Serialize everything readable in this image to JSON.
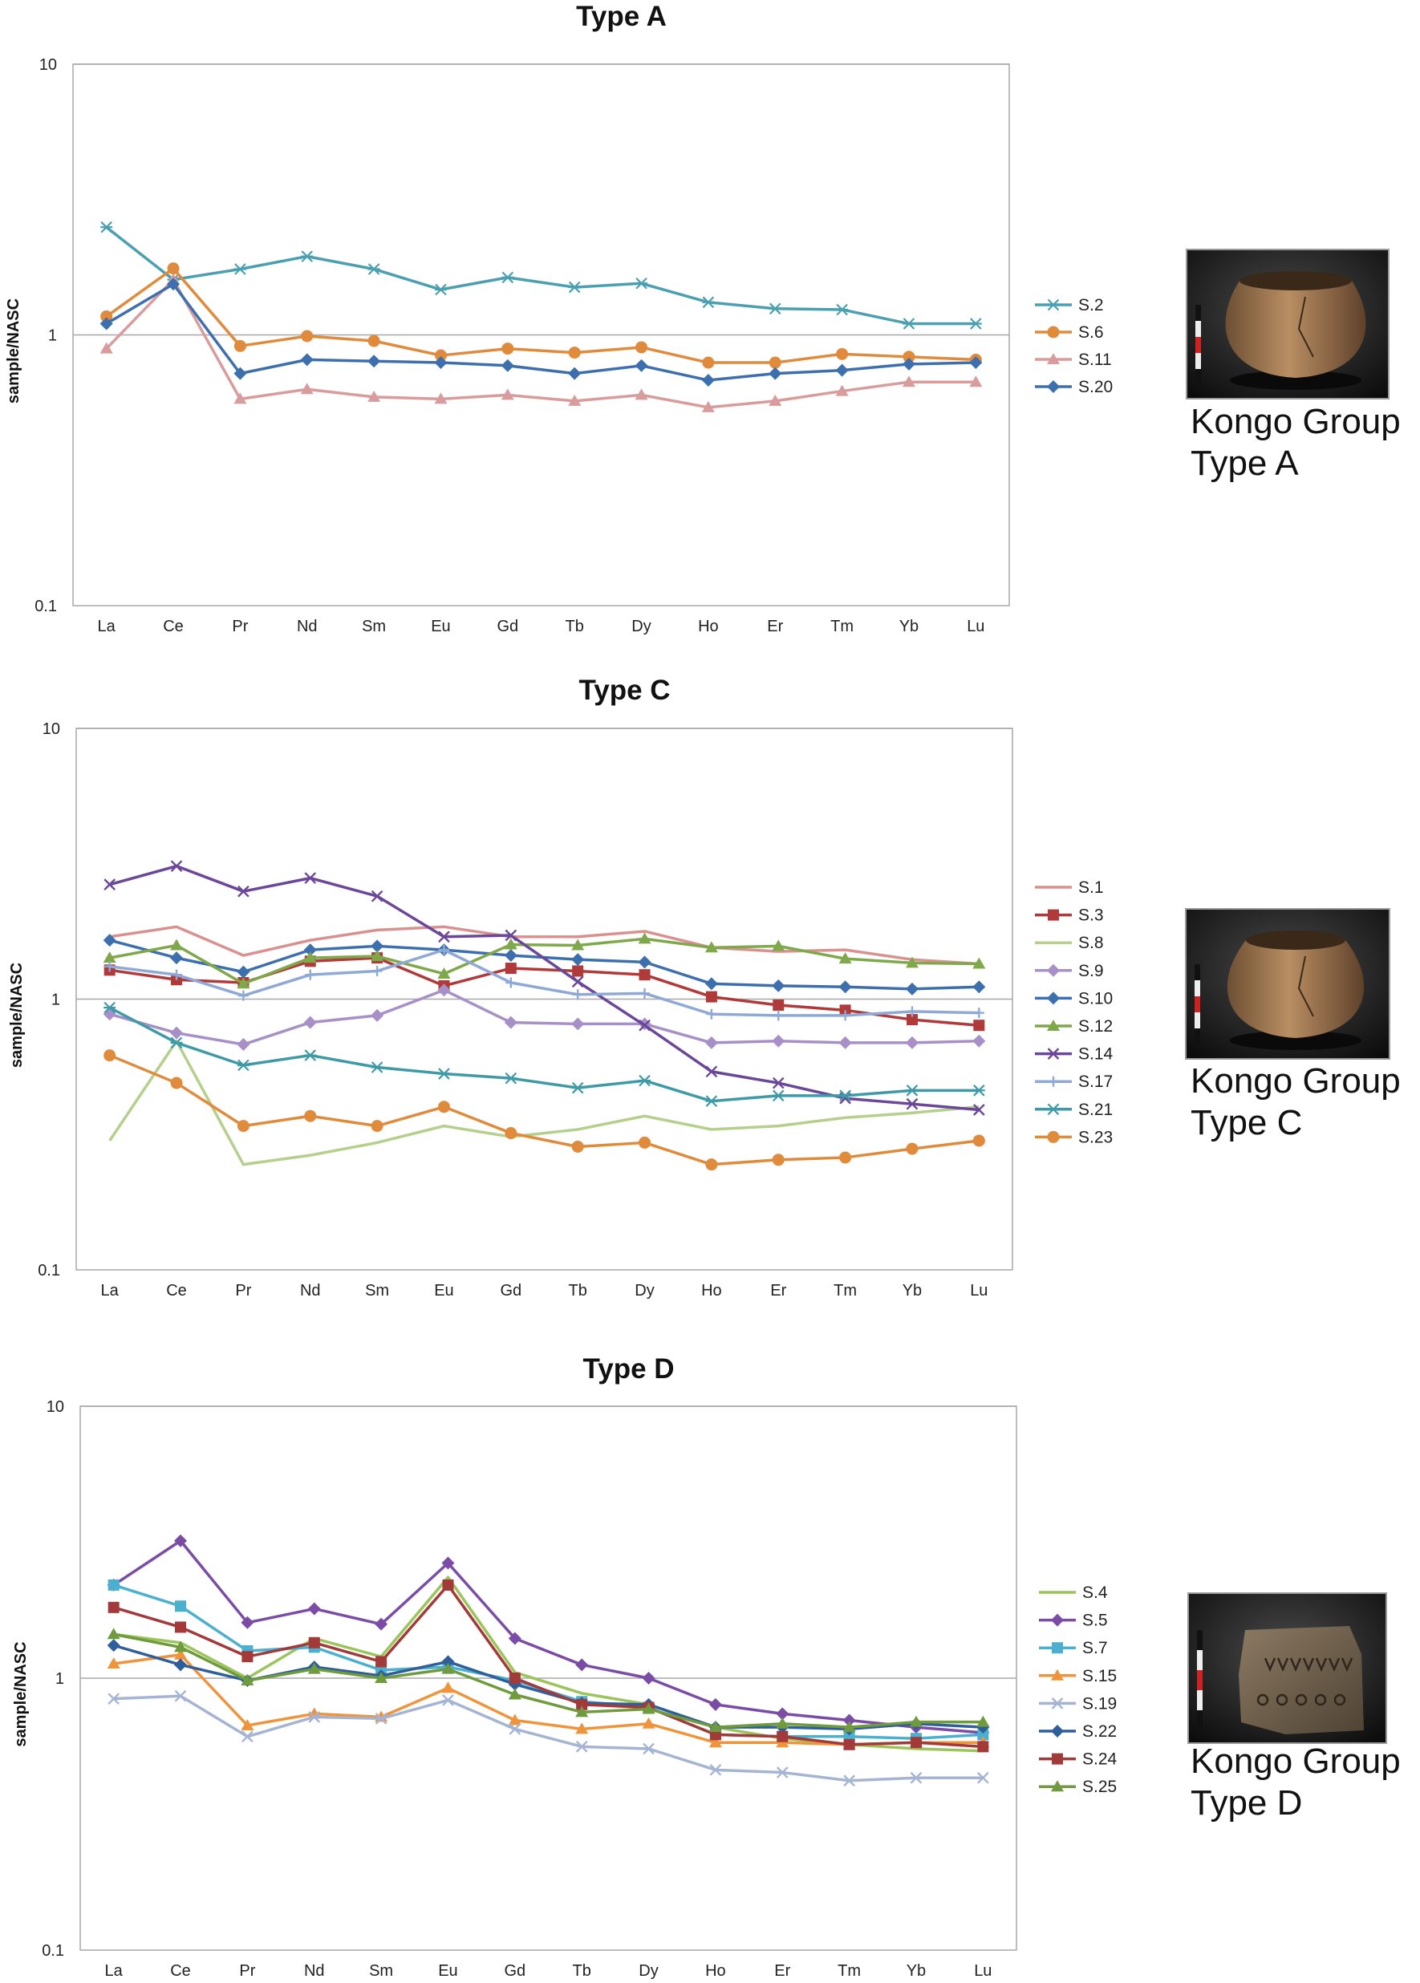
{
  "chart_data": [
    {
      "type": "line",
      "title": "Type A",
      "ylabel": "sample/NASC",
      "xlabel": "",
      "yscale": "log",
      "ylim": [
        0.1,
        10
      ],
      "ytick_labels": [
        "10",
        "1",
        "0.1"
      ],
      "categories": [
        "La",
        "Ce",
        "Pr",
        "Nd",
        "Sm",
        "Eu",
        "Gd",
        "Tb",
        "Dy",
        "Ho",
        "Er",
        "Tm",
        "Yb",
        "Lu"
      ],
      "legend_position": "right",
      "series": [
        {
          "name": "S.2",
          "color": "#4a9fb0",
          "marker": "asterisk",
          "values": [
            2.5,
            1.6,
            1.75,
            1.95,
            1.75,
            1.47,
            1.63,
            1.5,
            1.55,
            1.32,
            1.25,
            1.24,
            1.1,
            1.1
          ]
        },
        {
          "name": "S.6",
          "color": "#e08a3c",
          "marker": "circle",
          "values": [
            1.17,
            1.76,
            0.91,
            0.99,
            0.95,
            0.84,
            0.89,
            0.86,
            0.9,
            0.79,
            0.79,
            0.85,
            0.83,
            0.81
          ]
        },
        {
          "name": "S.11",
          "color": "#d99b9b",
          "marker": "triangle",
          "values": [
            0.89,
            1.6,
            0.58,
            0.63,
            0.59,
            0.58,
            0.6,
            0.57,
            0.6,
            0.54,
            0.57,
            0.62,
            0.67,
            0.67
          ]
        },
        {
          "name": "S.20",
          "color": "#3d6fae",
          "marker": "diamond",
          "values": [
            1.1,
            1.54,
            0.72,
            0.81,
            0.8,
            0.79,
            0.77,
            0.72,
            0.77,
            0.68,
            0.72,
            0.74,
            0.78,
            0.79
          ]
        }
      ],
      "caption_lines": [
        "Kongo Group",
        "Type A"
      ]
    },
    {
      "type": "line",
      "title": "Type C",
      "ylabel": "sample/NASC",
      "xlabel": "",
      "yscale": "log",
      "ylim": [
        0.1,
        10
      ],
      "ytick_labels": [
        "10",
        "1",
        "0.1"
      ],
      "categories": [
        "La",
        "Ce",
        "Pr",
        "Nd",
        "Sm",
        "Eu",
        "Gd",
        "Tb",
        "Dy",
        "Ho",
        "Er",
        "Tm",
        "Yb",
        "Lu"
      ],
      "legend_position": "right",
      "series": [
        {
          "name": "S.1",
          "color": "#d99190",
          "marker": "none",
          "values": [
            1.7,
            1.85,
            1.45,
            1.65,
            1.8,
            1.85,
            1.7,
            1.7,
            1.78,
            1.55,
            1.5,
            1.52,
            1.4,
            1.35
          ]
        },
        {
          "name": "S.3",
          "color": "#b03a3a",
          "marker": "square",
          "values": [
            1.28,
            1.18,
            1.15,
            1.38,
            1.42,
            1.12,
            1.3,
            1.27,
            1.23,
            1.02,
            0.95,
            0.91,
            0.84,
            0.8
          ]
        },
        {
          "name": "S.8",
          "color": "#b4d08c",
          "marker": "none",
          "values": [
            0.3,
            0.7,
            0.245,
            0.265,
            0.295,
            0.34,
            0.31,
            0.33,
            0.37,
            0.33,
            0.34,
            0.365,
            0.38,
            0.4
          ]
        },
        {
          "name": "S.9",
          "color": "#a78fc7",
          "marker": "diamond",
          "values": [
            0.88,
            0.75,
            0.68,
            0.82,
            0.87,
            1.08,
            0.82,
            0.81,
            0.81,
            0.69,
            0.7,
            0.69,
            0.69,
            0.7
          ]
        },
        {
          "name": "S.10",
          "color": "#3d6fae",
          "marker": "diamond",
          "values": [
            1.65,
            1.42,
            1.26,
            1.52,
            1.57,
            1.52,
            1.45,
            1.4,
            1.37,
            1.14,
            1.12,
            1.11,
            1.09,
            1.11
          ]
        },
        {
          "name": "S.12",
          "color": "#7fa84a",
          "marker": "triangle",
          "values": [
            1.42,
            1.58,
            1.14,
            1.42,
            1.44,
            1.24,
            1.59,
            1.58,
            1.67,
            1.55,
            1.57,
            1.41,
            1.36,
            1.35
          ]
        },
        {
          "name": "S.14",
          "color": "#6b479a",
          "marker": "x",
          "values": [
            2.65,
            3.1,
            2.5,
            2.8,
            2.4,
            1.7,
            1.72,
            1.16,
            0.8,
            0.54,
            0.49,
            0.43,
            0.41,
            0.39
          ]
        },
        {
          "name": "S.17",
          "color": "#8fa9d6",
          "marker": "plus",
          "values": [
            1.32,
            1.23,
            1.03,
            1.23,
            1.27,
            1.52,
            1.15,
            1.04,
            1.05,
            0.88,
            0.87,
            0.87,
            0.9,
            0.89
          ]
        },
        {
          "name": "S.21",
          "color": "#3f9aa8",
          "marker": "asterisk",
          "values": [
            0.93,
            0.69,
            0.57,
            0.62,
            0.56,
            0.53,
            0.51,
            0.47,
            0.5,
            0.42,
            0.44,
            0.44,
            0.46,
            0.46
          ]
        },
        {
          "name": "S.23",
          "color": "#e08a3c",
          "marker": "circle",
          "values": [
            0.62,
            0.49,
            0.34,
            0.37,
            0.34,
            0.4,
            0.32,
            0.285,
            0.295,
            0.245,
            0.255,
            0.26,
            0.28,
            0.3
          ]
        }
      ],
      "caption_lines": [
        "Kongo Group",
        "Type C"
      ]
    },
    {
      "type": "line",
      "title": "Type D",
      "ylabel": "sample/NASC",
      "xlabel": "",
      "yscale": "log",
      "ylim": [
        0.1,
        10
      ],
      "ytick_labels": [
        "10",
        "1",
        "0.1"
      ],
      "categories": [
        "La",
        "Ce",
        "Pr",
        "Nd",
        "Sm",
        "Eu",
        "Gd",
        "Tb",
        "Dy",
        "Ho",
        "Er",
        "Tm",
        "Yb",
        "Lu"
      ],
      "legend_position": "right",
      "series": [
        {
          "name": "S.4",
          "color": "#9bc45a",
          "marker": "none",
          "values": [
            1.45,
            1.35,
            1.0,
            1.4,
            1.2,
            2.35,
            1.05,
            0.88,
            0.8,
            0.66,
            0.6,
            0.57,
            0.55,
            0.54
          ]
        },
        {
          "name": "S.5",
          "color": "#7a4ca6",
          "marker": "diamond",
          "values": [
            2.2,
            3.2,
            1.6,
            1.8,
            1.58,
            2.65,
            1.4,
            1.12,
            1.0,
            0.8,
            0.74,
            0.7,
            0.66,
            0.63
          ]
        },
        {
          "name": "S.7",
          "color": "#4bb0cf",
          "marker": "square",
          "values": [
            2.2,
            1.84,
            1.26,
            1.3,
            1.07,
            1.1,
            0.98,
            0.82,
            0.78,
            0.62,
            0.61,
            0.61,
            0.6,
            0.62
          ]
        },
        {
          "name": "S.15",
          "color": "#f0943c",
          "marker": "triangle",
          "values": [
            1.13,
            1.22,
            0.67,
            0.74,
            0.72,
            0.92,
            0.7,
            0.65,
            0.68,
            0.58,
            0.58,
            0.57,
            0.58,
            0.58
          ]
        },
        {
          "name": "S.19",
          "color": "#a6b4d4",
          "marker": "x",
          "values": [
            0.84,
            0.86,
            0.61,
            0.72,
            0.71,
            0.83,
            0.65,
            0.56,
            0.55,
            0.46,
            0.45,
            0.42,
            0.43,
            0.43
          ]
        },
        {
          "name": "S.22",
          "color": "#2f5f9a",
          "marker": "diamond",
          "values": [
            1.32,
            1.12,
            0.98,
            1.1,
            1.02,
            1.15,
            0.95,
            0.81,
            0.8,
            0.66,
            0.66,
            0.65,
            0.68,
            0.66
          ]
        },
        {
          "name": "S.24",
          "color": "#a33a3a",
          "marker": "square",
          "values": [
            1.82,
            1.54,
            1.2,
            1.35,
            1.15,
            2.2,
            1.0,
            0.8,
            0.78,
            0.62,
            0.61,
            0.57,
            0.58,
            0.56
          ]
        },
        {
          "name": "S.25",
          "color": "#6f9a3e",
          "marker": "triangle",
          "values": [
            1.45,
            1.3,
            0.98,
            1.08,
            1.0,
            1.08,
            0.87,
            0.75,
            0.77,
            0.66,
            0.68,
            0.66,
            0.69,
            0.69
          ]
        }
      ],
      "caption_lines": [
        "Kongo Group",
        "Type D"
      ]
    }
  ]
}
